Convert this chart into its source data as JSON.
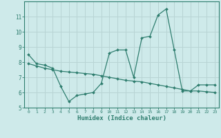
{
  "line1_x": [
    0,
    1,
    2,
    3,
    4,
    5,
    6,
    7,
    8,
    9,
    10,
    11,
    12,
    13,
    14,
    15,
    16,
    17,
    18,
    19,
    20,
    21,
    22,
    23
  ],
  "line1_y": [
    8.5,
    7.9,
    7.8,
    7.6,
    6.4,
    5.4,
    5.8,
    5.9,
    6.0,
    6.6,
    8.6,
    8.8,
    8.8,
    7.0,
    9.6,
    9.7,
    11.1,
    11.5,
    8.8,
    6.1,
    6.1,
    6.5,
    6.5,
    6.5
  ],
  "line2_x": [
    0,
    1,
    2,
    3,
    4,
    5,
    6,
    7,
    8,
    9,
    10,
    11,
    12,
    13,
    14,
    15,
    16,
    17,
    18,
    19,
    20,
    21,
    22,
    23
  ],
  "line2_y": [
    7.9,
    7.75,
    7.6,
    7.5,
    7.4,
    7.35,
    7.3,
    7.25,
    7.2,
    7.1,
    7.0,
    6.9,
    6.8,
    6.75,
    6.7,
    6.6,
    6.5,
    6.4,
    6.3,
    6.2,
    6.1,
    6.1,
    6.05,
    6.0
  ],
  "line_color": "#2e7d6e",
  "bg_color": "#ceeaea",
  "grid_color": "#b8d4d4",
  "xlabel": "Humidex (Indice chaleur)",
  "ylim": [
    5,
    12
  ],
  "xlim": [
    -0.5,
    23.5
  ],
  "yticks": [
    5,
    6,
    7,
    8,
    9,
    10,
    11
  ],
  "xticks": [
    0,
    1,
    2,
    3,
    4,
    5,
    6,
    7,
    8,
    9,
    10,
    11,
    12,
    13,
    14,
    15,
    16,
    17,
    18,
    19,
    20,
    21,
    22,
    23
  ]
}
